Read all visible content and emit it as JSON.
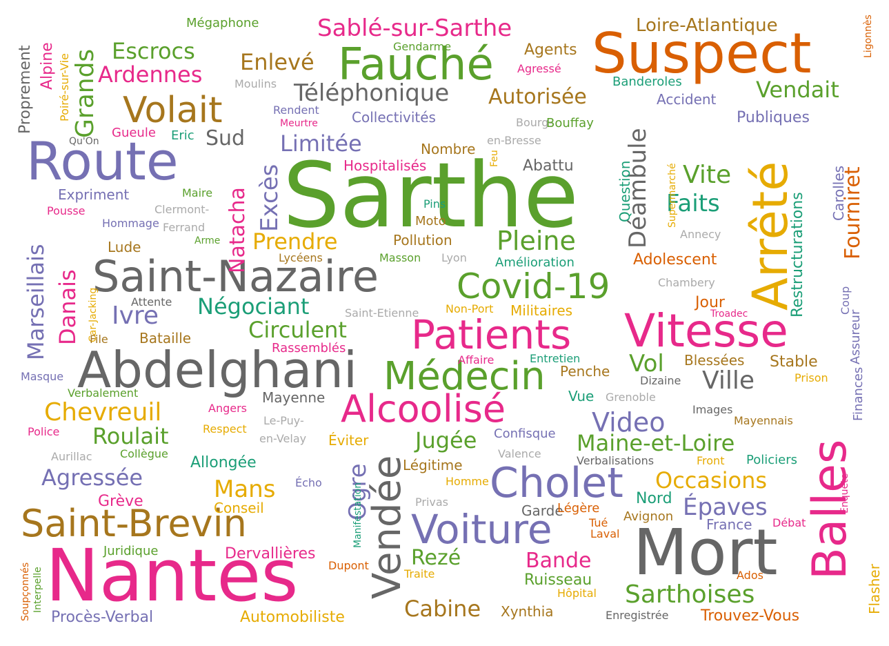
{
  "colors": {
    "green": "#5aa02c",
    "orange": "#d95f02",
    "purple": "#7570b3",
    "pink": "#e7298a",
    "gray": "#666666",
    "brown": "#a6761d",
    "teal": "#1b9e77",
    "yellow": "#e6ab02",
    "light": "#aaaaaa"
  },
  "words": [
    {
      "text": "Sarthe",
      "color": "green"
    },
    {
      "text": "Nantes",
      "color": "pink"
    },
    {
      "text": "Mort",
      "color": "gray"
    },
    {
      "text": "Suspect",
      "color": "orange"
    },
    {
      "text": "Abdelghani",
      "color": "gray"
    },
    {
      "text": "Vitesse",
      "color": "pink"
    },
    {
      "text": "Route",
      "color": "purple"
    },
    {
      "text": "Saint-Nazaire",
      "color": "gray"
    },
    {
      "text": "Fauché",
      "color": "green"
    },
    {
      "text": "Patients",
      "color": "pink"
    },
    {
      "text": "Saint-Brevin",
      "color": "brown"
    },
    {
      "text": "Arrêté",
      "color": "yellow"
    },
    {
      "text": "Balles",
      "color": "pink"
    },
    {
      "text": "Voiture",
      "color": "purple"
    },
    {
      "text": "Cholet",
      "color": "purple"
    },
    {
      "text": "Covid-19",
      "color": "green"
    },
    {
      "text": "Médecin",
      "color": "green"
    },
    {
      "text": "Alcoolisé",
      "color": "pink"
    },
    {
      "text": "Vendée",
      "color": "gray"
    },
    {
      "text": "Volait",
      "color": "brown"
    },
    {
      "text": "Sablé-sur-Sarthe",
      "color": "pink"
    },
    {
      "text": "Téléphonique",
      "color": "gray"
    },
    {
      "text": "Déambule",
      "color": "gray"
    },
    {
      "text": "Chevreuil",
      "color": "yellow"
    },
    {
      "text": "Sarthoises",
      "color": "green"
    },
    {
      "text": "Ville",
      "color": "gray"
    },
    {
      "text": "Video",
      "color": "purple"
    },
    {
      "text": "Escrocs",
      "color": "green"
    },
    {
      "text": "Ardennes",
      "color": "pink"
    },
    {
      "text": "Loire-Atlantique",
      "color": "brown"
    },
    {
      "text": "Marseillais",
      "color": "purple"
    },
    {
      "text": "Grands",
      "color": "green"
    },
    {
      "text": "Enlevé",
      "color": "brown"
    },
    {
      "text": "Ivre",
      "color": "purple"
    },
    {
      "text": "Négociant",
      "color": "teal"
    },
    {
      "text": "Circulent",
      "color": "green"
    },
    {
      "text": "Pleine",
      "color": "green"
    },
    {
      "text": "Prendre",
      "color": "yellow"
    },
    {
      "text": "Limitée",
      "color": "purple"
    },
    {
      "text": "Autorisée",
      "color": "brown"
    },
    {
      "text": "Vendait",
      "color": "green"
    },
    {
      "text": "Agressée",
      "color": "purple"
    },
    {
      "text": "Roulait",
      "color": "green"
    },
    {
      "text": "Mans",
      "color": "yellow"
    },
    {
      "text": "Maine-et-Loire",
      "color": "green"
    },
    {
      "text": "Occasions",
      "color": "yellow"
    },
    {
      "text": "Épaves",
      "color": "purple"
    },
    {
      "text": "Bande",
      "color": "pink"
    },
    {
      "text": "Cabine",
      "color": "brown"
    },
    {
      "text": "Rezé",
      "color": "green"
    },
    {
      "text": "Jugée",
      "color": "green"
    },
    {
      "text": "Ogre",
      "color": "purple"
    },
    {
      "text": "Excès",
      "color": "purple"
    },
    {
      "text": "Natacha",
      "color": "pink"
    },
    {
      "text": "Danais",
      "color": "pink"
    },
    {
      "text": "Fourniret",
      "color": "orange"
    },
    {
      "text": "Restructurations",
      "color": "teal"
    },
    {
      "text": "Vite",
      "color": "green"
    },
    {
      "text": "Faits",
      "color": "teal"
    },
    {
      "text": "Vol",
      "color": "green"
    },
    {
      "text": "Sud",
      "color": "gray"
    },
    {
      "text": "Proprement",
      "color": "gray"
    },
    {
      "text": "Alpine",
      "color": "pink"
    },
    {
      "text": "Poiré-sur-Vie",
      "color": "yellow"
    },
    {
      "text": "Mégaphone",
      "color": "green"
    },
    {
      "text": "Gendarme",
      "color": "green"
    },
    {
      "text": "Agents",
      "color": "brown"
    },
    {
      "text": "Agressé",
      "color": "pink"
    },
    {
      "text": "Moulins",
      "color": "light"
    },
    {
      "text": "Banderoles",
      "color": "teal"
    },
    {
      "text": "Accident",
      "color": "purple"
    },
    {
      "text": "Rendent",
      "color": "purple"
    },
    {
      "text": "Meurtre",
      "color": "pink"
    },
    {
      "text": "Collectivités",
      "color": "purple"
    },
    {
      "text": "Bourg-",
      "color": "light"
    },
    {
      "text": "Bouffay",
      "color": "green"
    },
    {
      "text": "en-Bresse",
      "color": "light"
    },
    {
      "text": "Publiques",
      "color": "purple"
    },
    {
      "text": "Gueule",
      "color": "pink"
    },
    {
      "text": "Eric",
      "color": "teal"
    },
    {
      "text": "Qu'On",
      "color": "gray"
    },
    {
      "text": "Nombre",
      "color": "brown"
    },
    {
      "text": "Hospitalisés",
      "color": "pink"
    },
    {
      "text": "Feu",
      "color": "yellow"
    },
    {
      "text": "Abattu",
      "color": "gray"
    },
    {
      "text": "Question",
      "color": "teal"
    },
    {
      "text": "Supermarché",
      "color": "yellow"
    },
    {
      "text": "Carolles",
      "color": "purple"
    },
    {
      "text": "Ligonnès",
      "color": "orange"
    },
    {
      "text": "Expriment",
      "color": "purple"
    },
    {
      "text": "Maire",
      "color": "green"
    },
    {
      "text": "Pousse",
      "color": "pink"
    },
    {
      "text": "Clermont-",
      "color": "light"
    },
    {
      "text": "Ferrand",
      "color": "light"
    },
    {
      "text": "Hommage",
      "color": "purple"
    },
    {
      "text": "Arme",
      "color": "green"
    },
    {
      "text": "Pins",
      "color": "teal"
    },
    {
      "text": "Moto",
      "color": "brown"
    },
    {
      "text": "Pollution",
      "color": "brown"
    },
    {
      "text": "Annecy",
      "color": "light"
    },
    {
      "text": "Lude",
      "color": "brown"
    },
    {
      "text": "Lycéens",
      "color": "brown"
    },
    {
      "text": "Masson",
      "color": "green"
    },
    {
      "text": "Lyon",
      "color": "light"
    },
    {
      "text": "Amélioration",
      "color": "teal"
    },
    {
      "text": "Adolescent",
      "color": "orange"
    },
    {
      "text": "Chambery",
      "color": "light"
    },
    {
      "text": "Car-Jacking",
      "color": "yellow"
    },
    {
      "text": "Attente",
      "color": "gray"
    },
    {
      "text": "Saint-Etienne",
      "color": "light"
    },
    {
      "text": "Non-Port",
      "color": "yellow"
    },
    {
      "text": "Militaires",
      "color": "yellow"
    },
    {
      "text": "Jour",
      "color": "orange"
    },
    {
      "text": "Troadec",
      "color": "pink"
    },
    {
      "text": "Coup",
      "color": "purple"
    },
    {
      "text": "Assureur",
      "color": "purple"
    },
    {
      "text": "File",
      "color": "brown"
    },
    {
      "text": "Bataille",
      "color": "brown"
    },
    {
      "text": "Rassemblés",
      "color": "pink"
    },
    {
      "text": "Affaire",
      "color": "pink"
    },
    {
      "text": "Entretien",
      "color": "teal"
    },
    {
      "text": "Blessées",
      "color": "brown"
    },
    {
      "text": "Stable",
      "color": "brown"
    },
    {
      "text": "Masque",
      "color": "purple"
    },
    {
      "text": "Penche",
      "color": "brown"
    },
    {
      "text": "Dizaine",
      "color": "gray"
    },
    {
      "text": "Prison",
      "color": "yellow"
    },
    {
      "text": "Finances",
      "color": "purple"
    },
    {
      "text": "Verbalement",
      "color": "green"
    },
    {
      "text": "Mayenne",
      "color": "gray"
    },
    {
      "text": "Vue",
      "color": "teal"
    },
    {
      "text": "Grenoble",
      "color": "light"
    },
    {
      "text": "Angers",
      "color": "pink"
    },
    {
      "text": "Images",
      "color": "gray"
    },
    {
      "text": "Mayennais",
      "color": "brown"
    },
    {
      "text": "Le-Puy-",
      "color": "light"
    },
    {
      "text": "en-Velay",
      "color": "light"
    },
    {
      "text": "Police",
      "color": "pink"
    },
    {
      "text": "Respect",
      "color": "yellow"
    },
    {
      "text": "Éviter",
      "color": "yellow"
    },
    {
      "text": "Confisque",
      "color": "purple"
    },
    {
      "text": "Aurillac",
      "color": "light"
    },
    {
      "text": "Collègue",
      "color": "green"
    },
    {
      "text": "Valence",
      "color": "light"
    },
    {
      "text": "Verbalisations",
      "color": "gray"
    },
    {
      "text": "Front",
      "color": "yellow"
    },
    {
      "text": "Policiers",
      "color": "teal"
    },
    {
      "text": "Allongée",
      "color": "teal"
    },
    {
      "text": "Légitime",
      "color": "brown"
    },
    {
      "text": "Homme",
      "color": "yellow"
    },
    {
      "text": "Enquête",
      "color": "pink"
    },
    {
      "text": "Manifestation",
      "color": "teal"
    },
    {
      "text": "Écho",
      "color": "purple"
    },
    {
      "text": "Nord",
      "color": "teal"
    },
    {
      "text": "Grève",
      "color": "pink"
    },
    {
      "text": "Conseil",
      "color": "yellow"
    },
    {
      "text": "Privas",
      "color": "light"
    },
    {
      "text": "Garde",
      "color": "gray"
    },
    {
      "text": "Légère",
      "color": "orange"
    },
    {
      "text": "Avignon",
      "color": "brown"
    },
    {
      "text": "Tué",
      "color": "orange"
    },
    {
      "text": "Laval",
      "color": "orange"
    },
    {
      "text": "France",
      "color": "purple"
    },
    {
      "text": "Débat",
      "color": "pink"
    },
    {
      "text": "Juridique",
      "color": "green"
    },
    {
      "text": "Dervallières",
      "color": "pink"
    },
    {
      "text": "Soupçonnés",
      "color": "orange"
    },
    {
      "text": "Interpelle",
      "color": "green"
    },
    {
      "text": "Dupont",
      "color": "orange"
    },
    {
      "text": "Traite",
      "color": "yellow"
    },
    {
      "text": "Ruisseau",
      "color": "green"
    },
    {
      "text": "Hôpital",
      "color": "yellow"
    },
    {
      "text": "Ados",
      "color": "orange"
    },
    {
      "text": "Flasher",
      "color": "yellow"
    },
    {
      "text": "Procès-Verbal",
      "color": "purple"
    },
    {
      "text": "Automobiliste",
      "color": "yellow"
    },
    {
      "text": "Xynthia",
      "color": "brown"
    },
    {
      "text": "Enregistrée",
      "color": "gray"
    },
    {
      "text": "Trouvez-Vous",
      "color": "orange"
    }
  ]
}
